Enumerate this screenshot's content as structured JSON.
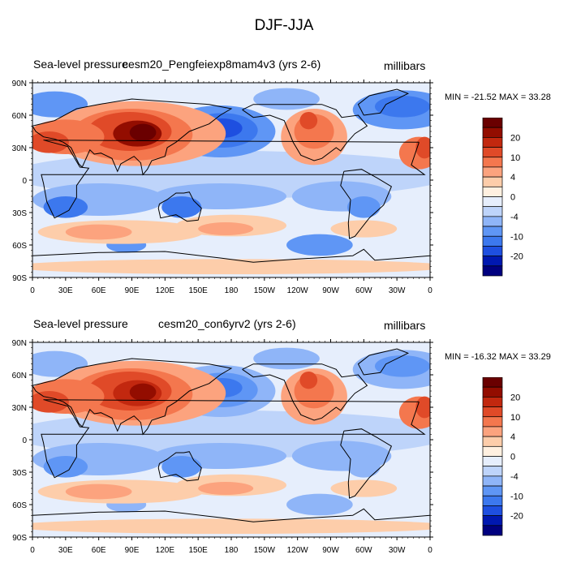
{
  "title": "DJF-JJA",
  "colors": [
    "#00007f",
    "#0018b0",
    "#1e4fe0",
    "#3c78ee",
    "#5f96f5",
    "#8fb5f8",
    "#bed4fa",
    "#e6eefc",
    "#fff0e0",
    "#fdcdaa",
    "#fca37e",
    "#f4774e",
    "#e04a28",
    "#c2280f",
    "#930d00",
    "#6a0000"
  ],
  "colorbar_labels": [
    "20",
    "10",
    "4",
    "0",
    "-4",
    "-10",
    "-20"
  ],
  "axes": {
    "lat_ticks": [
      "90N",
      "60N",
      "30N",
      "0",
      "30S",
      "60S",
      "90S"
    ],
    "lon_ticks": [
      "0",
      "30E",
      "60E",
      "90E",
      "120E",
      "150E",
      "180",
      "150W",
      "120W",
      "90W",
      "60W",
      "30W",
      "0"
    ]
  },
  "panels": [
    {
      "field": "Sea-level pressure",
      "case": "cesm20_Pengfeiexp8mam4v3 (yrs 2-6)",
      "units": "millibars",
      "min_max": "MIN = -21.52 MAX = 33.28"
    },
    {
      "field": "Sea-level pressure",
      "case": "cesm20_con6yrv2 (yrs 2-6)",
      "units": "millibars",
      "min_max": "MIN = -16.32 MAX = 33.29"
    }
  ]
}
